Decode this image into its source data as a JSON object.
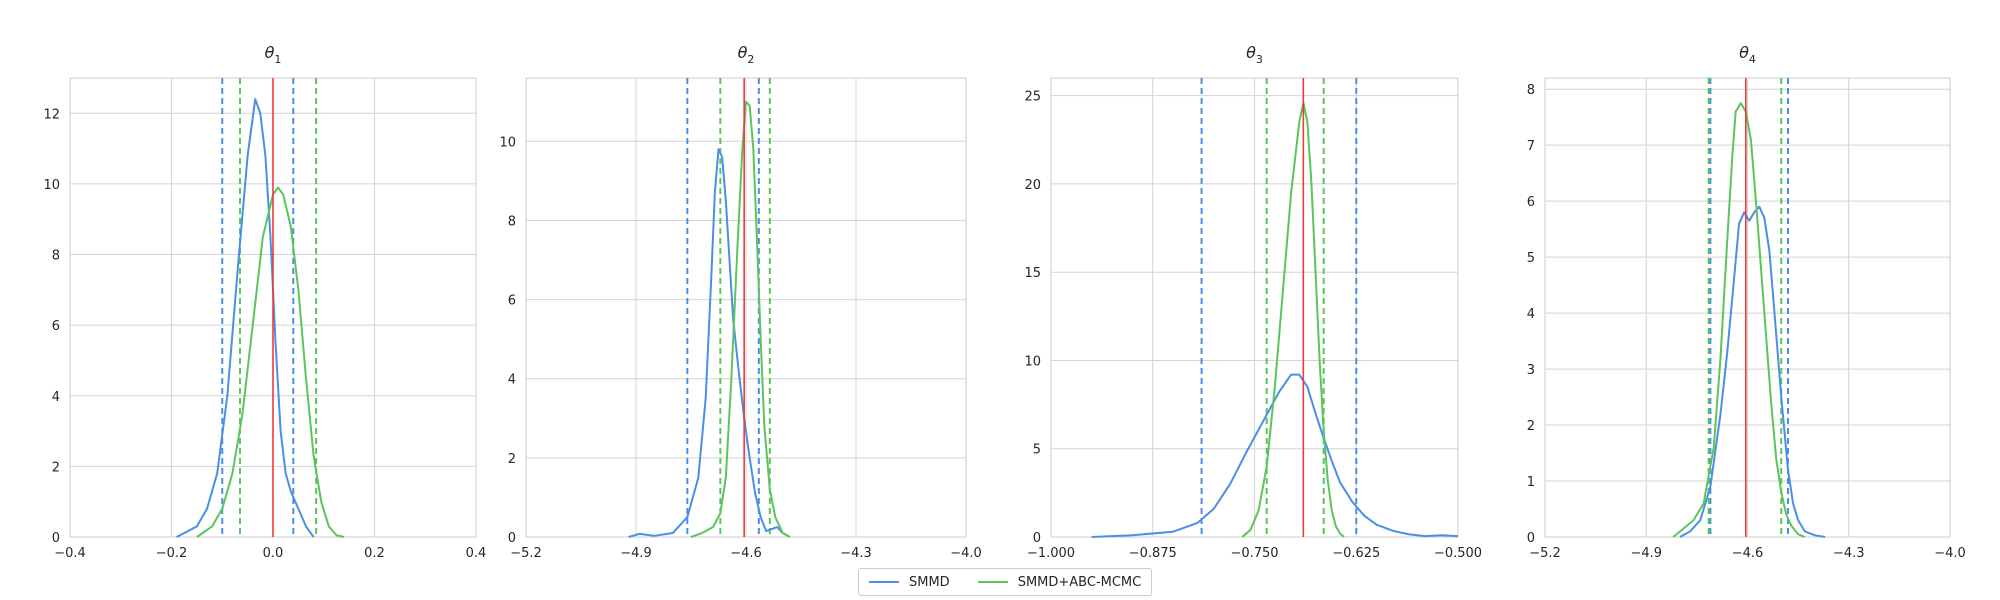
{
  "colors": {
    "smmd": "#4a8fe7",
    "abc": "#5cc45c",
    "truth": "#ee3a3a"
  },
  "legend": {
    "entries": [
      {
        "label": "SMMD",
        "color": "#4a8fe7"
      },
      {
        "label": "SMMD+ABC-MCMC",
        "color": "#5cc45c"
      }
    ]
  },
  "chart_data": [
    {
      "type": "line",
      "title_main": "θ",
      "title_sub": "1",
      "xlim": [
        -0.4,
        0.4
      ],
      "ylim": [
        0,
        13
      ],
      "xticks": [
        -0.4,
        -0.2,
        0.0,
        0.2,
        0.4
      ],
      "xtick_labels": [
        "−0.4",
        "−0.2",
        "0.0",
        "0.2",
        "0.4"
      ],
      "yticks": [
        0,
        2,
        4,
        6,
        8,
        10,
        12
      ],
      "ytick_labels": [
        "0",
        "2",
        "4",
        "6",
        "8",
        "10",
        "12"
      ],
      "true_value": 0.0,
      "series": [
        {
          "name": "SMMD",
          "color": "#4a8fe7",
          "interval": [
            -0.1,
            0.04
          ],
          "x": [
            -0.19,
            -0.17,
            -0.15,
            -0.13,
            -0.11,
            -0.09,
            -0.07,
            -0.05,
            -0.035,
            -0.025,
            -0.015,
            -0.005,
            0.005,
            0.015,
            0.025,
            0.035,
            0.05,
            0.065,
            0.08
          ],
          "y": [
            0,
            0.15,
            0.3,
            0.8,
            1.8,
            4.0,
            7.5,
            10.8,
            12.4,
            12.0,
            10.8,
            8.5,
            5.5,
            3.0,
            1.8,
            1.3,
            0.8,
            0.3,
            0
          ]
        },
        {
          "name": "SMMD+ABC-MCMC",
          "color": "#5cc45c",
          "interval": [
            -0.065,
            0.085
          ],
          "x": [
            -0.15,
            -0.12,
            -0.1,
            -0.08,
            -0.06,
            -0.04,
            -0.02,
            0.0,
            0.01,
            0.02,
            0.035,
            0.05,
            0.065,
            0.08,
            0.095,
            0.11,
            0.125,
            0.14
          ],
          "y": [
            0,
            0.3,
            0.8,
            1.8,
            3.5,
            6.0,
            8.5,
            9.7,
            9.9,
            9.7,
            8.8,
            7.0,
            4.5,
            2.3,
            1.0,
            0.3,
            0.05,
            0
          ]
        }
      ]
    },
    {
      "type": "line",
      "title_main": "θ",
      "title_sub": "2",
      "xlim": [
        -5.2,
        -4.0
      ],
      "ylim": [
        0,
        11.6
      ],
      "xticks": [
        -5.2,
        -4.9,
        -4.6,
        -4.3,
        -4.0
      ],
      "xtick_labels": [
        "−5.2",
        "−4.9",
        "−4.6",
        "−4.3",
        "−4.0"
      ],
      "yticks": [
        0,
        2,
        4,
        6,
        8,
        10
      ],
      "ytick_labels": [
        "0",
        "2",
        "4",
        "6",
        "8",
        "10"
      ],
      "true_value": -4.605,
      "series": [
        {
          "name": "SMMD",
          "color": "#4a8fe7",
          "interval": [
            -4.76,
            -4.565
          ],
          "x": [
            -4.92,
            -4.89,
            -4.85,
            -4.8,
            -4.76,
            -4.73,
            -4.71,
            -4.695,
            -4.685,
            -4.675,
            -4.665,
            -4.655,
            -4.645,
            -4.635,
            -4.62,
            -4.605,
            -4.59,
            -4.575,
            -4.56,
            -4.545,
            -4.53,
            -4.515,
            -4.5,
            -4.48
          ],
          "y": [
            0,
            0.08,
            0.03,
            0.1,
            0.5,
            1.5,
            3.5,
            6.5,
            8.7,
            9.8,
            9.6,
            8.5,
            7.0,
            5.5,
            4.2,
            3.0,
            2.0,
            1.1,
            0.5,
            0.15,
            0.2,
            0.25,
            0.1,
            0
          ]
        },
        {
          "name": "SMMD+ABC-MCMC",
          "color": "#5cc45c",
          "interval": [
            -4.67,
            -4.535
          ],
          "x": [
            -4.75,
            -4.72,
            -4.69,
            -4.67,
            -4.655,
            -4.64,
            -4.625,
            -4.61,
            -4.6,
            -4.59,
            -4.58,
            -4.57,
            -4.56,
            -4.55,
            -4.535,
            -4.52,
            -4.5,
            -4.48
          ],
          "y": [
            0,
            0.1,
            0.25,
            0.6,
            1.5,
            4.0,
            7.0,
            9.8,
            11.0,
            10.9,
            9.8,
            7.5,
            5.0,
            2.8,
            1.2,
            0.5,
            0.1,
            0
          ]
        }
      ]
    },
    {
      "type": "line",
      "title_main": "θ",
      "title_sub": "3",
      "xlim": [
        -1.0,
        -0.5
      ],
      "ylim": [
        0,
        26
      ],
      "xticks": [
        -1.0,
        -0.875,
        -0.75,
        -0.625,
        -0.5
      ],
      "xtick_labels": [
        "−1.000",
        "−0.875",
        "−0.750",
        "−0.625",
        "−0.500"
      ],
      "yticks": [
        0,
        5,
        10,
        15,
        20,
        25
      ],
      "ytick_labels": [
        "0",
        "5",
        "10",
        "15",
        "20",
        "25"
      ],
      "true_value": -0.69,
      "series": [
        {
          "name": "SMMD",
          "color": "#4a8fe7",
          "interval": [
            -0.815,
            -0.625
          ],
          "x": [
            -0.95,
            -0.9,
            -0.85,
            -0.82,
            -0.8,
            -0.78,
            -0.76,
            -0.74,
            -0.72,
            -0.705,
            -0.695,
            -0.685,
            -0.675,
            -0.665,
            -0.655,
            -0.645,
            -0.63,
            -0.615,
            -0.6,
            -0.58,
            -0.56,
            -0.54,
            -0.52,
            -0.5
          ],
          "y": [
            0,
            0.1,
            0.3,
            0.8,
            1.6,
            3.0,
            4.8,
            6.5,
            8.2,
            9.2,
            9.2,
            8.5,
            7.0,
            5.6,
            4.3,
            3.1,
            2.0,
            1.2,
            0.7,
            0.35,
            0.15,
            0.05,
            0.1,
            0.05
          ]
        },
        {
          "name": "SMMD+ABC-MCMC",
          "color": "#5cc45c",
          "interval": [
            -0.735,
            -0.665
          ],
          "x": [
            -0.765,
            -0.755,
            -0.745,
            -0.735,
            -0.725,
            -0.715,
            -0.705,
            -0.695,
            -0.69,
            -0.685,
            -0.68,
            -0.675,
            -0.67,
            -0.665,
            -0.66,
            -0.655,
            -0.65,
            -0.645,
            -0.64
          ],
          "y": [
            0,
            0.4,
            1.5,
            4.0,
            8.5,
            14.0,
            19.5,
            23.5,
            24.6,
            23.5,
            20.0,
            15.0,
            10.0,
            6.0,
            3.2,
            1.5,
            0.6,
            0.2,
            0
          ]
        }
      ]
    },
    {
      "type": "line",
      "title_main": "θ",
      "title_sub": "4",
      "xlim": [
        -5.2,
        -4.0
      ],
      "ylim": [
        0,
        8.2
      ],
      "xticks": [
        -5.2,
        -4.9,
        -4.6,
        -4.3,
        -4.0
      ],
      "xtick_labels": [
        "−5.2",
        "−4.9",
        "−4.6",
        "−4.3",
        "−4.0"
      ],
      "yticks": [
        0,
        1,
        2,
        3,
        4,
        5,
        6,
        7,
        8
      ],
      "ytick_labels": [
        "0",
        "1",
        "2",
        "3",
        "4",
        "5",
        "6",
        "7",
        "8"
      ],
      "true_value": -4.605,
      "series": [
        {
          "name": "SMMD",
          "color": "#4a8fe7",
          "interval": [
            -4.71,
            -4.48
          ],
          "x": [
            -4.8,
            -4.77,
            -4.74,
            -4.71,
            -4.68,
            -4.66,
            -4.64,
            -4.625,
            -4.61,
            -4.595,
            -4.58,
            -4.565,
            -4.55,
            -4.535,
            -4.52,
            -4.5,
            -4.48,
            -4.465,
            -4.45,
            -4.43,
            -4.4,
            -4.37
          ],
          "y": [
            0,
            0.1,
            0.3,
            0.9,
            2.2,
            3.3,
            4.6,
            5.6,
            5.8,
            5.65,
            5.8,
            5.9,
            5.7,
            5.1,
            4.0,
            2.5,
            1.2,
            0.6,
            0.3,
            0.1,
            0.03,
            0
          ]
        },
        {
          "name": "SMMD+ABC-MCMC",
          "color": "#5cc45c",
          "interval": [
            -4.715,
            -4.5
          ],
          "x": [
            -4.82,
            -4.79,
            -4.76,
            -4.73,
            -4.7,
            -4.68,
            -4.66,
            -4.645,
            -4.635,
            -4.62,
            -4.605,
            -4.59,
            -4.575,
            -4.56,
            -4.545,
            -4.53,
            -4.515,
            -4.5,
            -4.485,
            -4.47,
            -4.45,
            -4.43
          ],
          "y": [
            0,
            0.15,
            0.3,
            0.6,
            1.6,
            3.2,
            5.3,
            6.8,
            7.6,
            7.75,
            7.6,
            7.1,
            6.0,
            4.8,
            3.6,
            2.4,
            1.4,
            0.8,
            0.4,
            0.2,
            0.05,
            0
          ]
        }
      ]
    }
  ]
}
